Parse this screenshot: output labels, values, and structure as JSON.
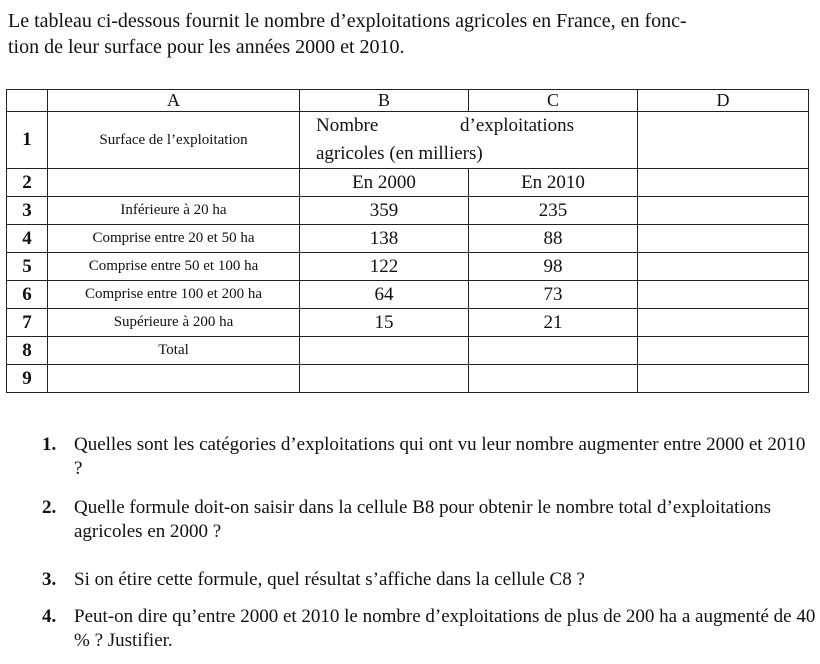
{
  "intro": {
    "line1": "Le tableau ci-dessous fournit le nombre d’exploitations agricoles en France, en fonc-",
    "line2": "tion de leur surface pour les années 2000 et 2010."
  },
  "sheet": {
    "columns": [
      "A",
      "B",
      "C",
      "D"
    ],
    "row_numbers": [
      "1",
      "2",
      "3",
      "4",
      "5",
      "6",
      "7",
      "8",
      "9"
    ],
    "a1": "Surface de l’exploitation",
    "b1_word1": "Nombre",
    "b1_word2": "d’exploitations",
    "b1_line2": "agricoles (en milliers)",
    "b2": "En 2000",
    "c2": "En 2010",
    "rows": [
      {
        "label": "Inférieure à 20 ha",
        "y2000": "359",
        "y2010": "235"
      },
      {
        "label": "Comprise entre 20 et 50 ha",
        "y2000": "138",
        "y2010": "88"
      },
      {
        "label": "Comprise entre 50 et 100 ha",
        "y2000": "122",
        "y2010": "98"
      },
      {
        "label": "Comprise entre 100 et 200 ha",
        "y2000": "64",
        "y2010": "73"
      },
      {
        "label": "Supérieure à 200 ha",
        "y2000": "15",
        "y2010": "21"
      }
    ],
    "a8": "Total"
  },
  "questions": [
    {
      "num": "1.",
      "text": "Quelles sont les catégories d’exploitations qui ont vu leur nombre augmenter entre 2000 et 2010 ?"
    },
    {
      "num": "2.",
      "text": "Quelle formule doit-on saisir dans la cellule B8 pour obtenir le nombre total d’exploitations agricoles en 2000 ?"
    },
    {
      "num": "3.",
      "text": "Si on étire cette formule, quel résultat s’affiche dans la cellule C8 ?"
    },
    {
      "num": "4.",
      "text": "Peut-on dire qu’entre 2000 et 2010 le nombre d’exploitations de plus de 200 ha a augmenté de 40 % ? Justifier."
    }
  ]
}
